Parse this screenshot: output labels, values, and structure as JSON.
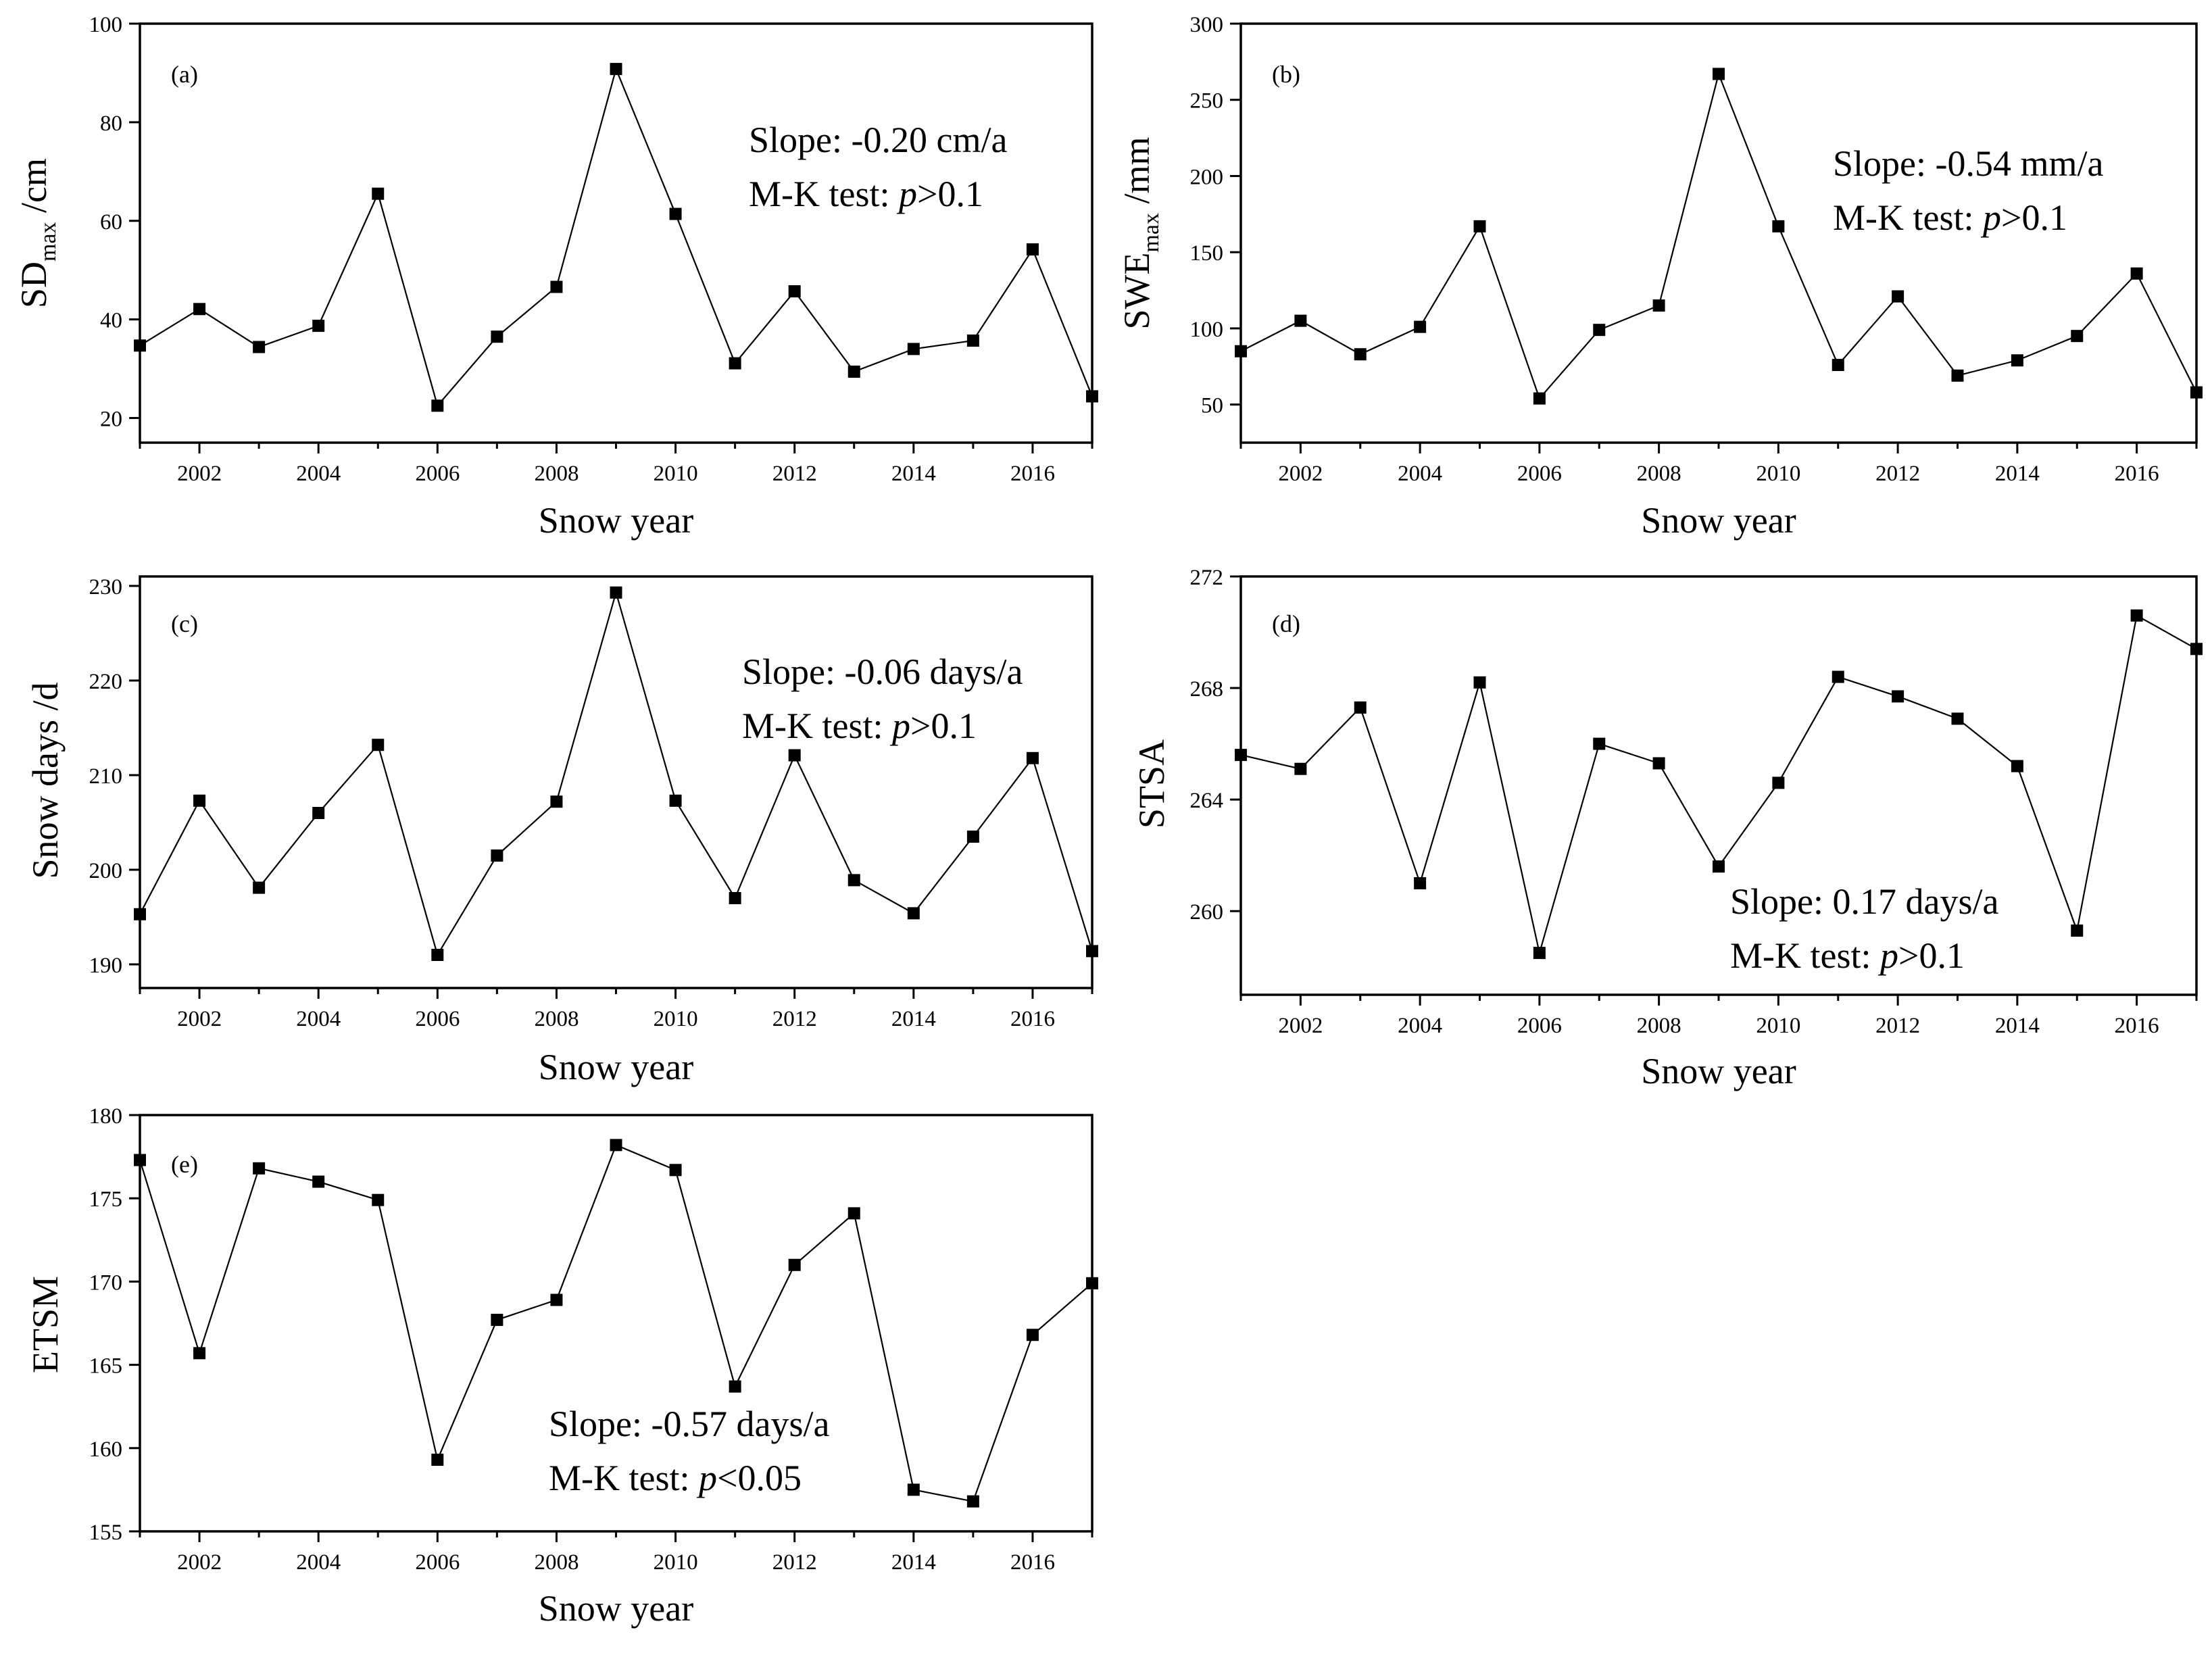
{
  "chart_data": [
    {
      "id": "a",
      "type": "line",
      "panel_label": "(a)",
      "ylabel": "SD",
      "ylabel_sub": "max",
      "ylabel_unit": " /cm",
      "xlabel": "Snow year",
      "ylim": [
        15,
        100
      ],
      "yticks": [
        20,
        40,
        60,
        80,
        100
      ],
      "xlim": [
        2001,
        2017
      ],
      "xticks": [
        2002,
        2004,
        2006,
        2008,
        2010,
        2012,
        2014,
        2016
      ],
      "x": [
        2001,
        2002,
        2003,
        2004,
        2005,
        2006,
        2007,
        2008,
        2009,
        2010,
        2011,
        2012,
        2013,
        2014,
        2015,
        2016,
        2017
      ],
      "values": [
        34.7,
        42.1,
        34.4,
        38.7,
        65.5,
        22.5,
        36.5,
        46.6,
        90.8,
        61.4,
        31.1,
        45.7,
        29.4,
        34.0,
        35.7,
        54.2,
        24.4
      ],
      "annotation_slope": "Slope: -0.20 cm/a",
      "annotation_mk_prefix": "M-K test: ",
      "annotation_mk_p": "p",
      "annotation_mk_cond": ">0.1"
    },
    {
      "id": "b",
      "type": "line",
      "panel_label": "(b)",
      "ylabel": "SWE",
      "ylabel_sub": "max",
      "ylabel_unit": " /mm",
      "xlabel": "Snow year",
      "ylim": [
        25,
        300
      ],
      "yticks": [
        50,
        100,
        150,
        200,
        250,
        300
      ],
      "xlim": [
        2001,
        2017
      ],
      "xticks": [
        2002,
        2004,
        2006,
        2008,
        2010,
        2012,
        2014,
        2016
      ],
      "x": [
        2001,
        2002,
        2003,
        2004,
        2005,
        2006,
        2007,
        2008,
        2009,
        2010,
        2011,
        2012,
        2013,
        2014,
        2015,
        2016,
        2017
      ],
      "values": [
        85,
        105,
        83,
        101,
        167,
        54,
        99,
        115,
        267,
        167,
        76,
        121,
        69,
        79,
        95,
        136,
        58
      ],
      "annotation_slope": "Slope: -0.54 mm/a",
      "annotation_mk_prefix": "M-K test: ",
      "annotation_mk_p": "p",
      "annotation_mk_cond": ">0.1"
    },
    {
      "id": "c",
      "type": "line",
      "panel_label": "(c)",
      "ylabel": "Snow days /d",
      "xlabel": "Snow year",
      "ylim": [
        187.5,
        231
      ],
      "yticks": [
        190,
        200,
        210,
        220,
        230
      ],
      "xlim": [
        2001,
        2017
      ],
      "xticks": [
        2002,
        2004,
        2006,
        2008,
        2010,
        2012,
        2014,
        2016
      ],
      "x": [
        2001,
        2002,
        2003,
        2004,
        2005,
        2006,
        2007,
        2008,
        2009,
        2010,
        2011,
        2012,
        2013,
        2014,
        2015,
        2016,
        2017
      ],
      "values": [
        195.3,
        207.3,
        198.1,
        206.0,
        213.2,
        191.0,
        201.5,
        207.2,
        229.3,
        207.3,
        197.0,
        212.1,
        198.9,
        195.4,
        203.5,
        211.8,
        191.4
      ],
      "annotation_slope": "Slope: -0.06 days/a",
      "annotation_mk_prefix": "M-K test: ",
      "annotation_mk_p": "p",
      "annotation_mk_cond": ">0.1"
    },
    {
      "id": "d",
      "type": "line",
      "panel_label": "(d)",
      "ylabel": "STSA",
      "xlabel": "Snow year",
      "ylim": [
        257,
        272
      ],
      "yticks": [
        260,
        264,
        268,
        272
      ],
      "xlim": [
        2001,
        2017
      ],
      "xticks": [
        2002,
        2004,
        2006,
        2008,
        2010,
        2012,
        2014,
        2016
      ],
      "x": [
        2001,
        2002,
        2003,
        2004,
        2005,
        2006,
        2007,
        2008,
        2009,
        2010,
        2011,
        2012,
        2013,
        2014,
        2015,
        2016,
        2017
      ],
      "values": [
        265.6,
        265.1,
        267.3,
        261.0,
        268.2,
        258.5,
        266.0,
        265.3,
        261.6,
        264.6,
        268.4,
        267.7,
        266.9,
        265.2,
        259.3,
        270.6,
        269.4
      ],
      "annotation_slope": "Slope: 0.17 days/a",
      "annotation_mk_prefix": "M-K test: ",
      "annotation_mk_p": "p",
      "annotation_mk_cond": ">0.1"
    },
    {
      "id": "e",
      "type": "line",
      "panel_label": "(e)",
      "ylabel": "ETSM",
      "xlabel": "Snow year",
      "ylim": [
        155,
        180
      ],
      "yticks": [
        155,
        160,
        165,
        170,
        175,
        180
      ],
      "xlim": [
        2001,
        2017
      ],
      "xticks": [
        2002,
        2004,
        2006,
        2008,
        2010,
        2012,
        2014,
        2016
      ],
      "x": [
        2001,
        2002,
        2003,
        2004,
        2005,
        2006,
        2007,
        2008,
        2009,
        2010,
        2011,
        2012,
        2013,
        2014,
        2015,
        2016,
        2017
      ],
      "values": [
        177.3,
        165.7,
        176.8,
        176.0,
        174.9,
        159.3,
        167.7,
        168.9,
        178.2,
        176.7,
        163.7,
        171.0,
        174.1,
        157.5,
        156.8,
        166.8,
        169.9
      ],
      "annotation_slope": "Slope: -0.57 days/a",
      "annotation_mk_prefix": "M-K test: ",
      "annotation_mk_p": "p",
      "annotation_mk_cond": "<0.05"
    }
  ]
}
